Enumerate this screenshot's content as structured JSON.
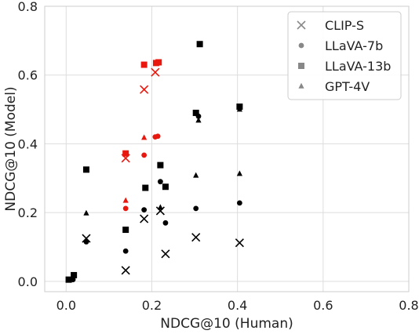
{
  "chart_data": {
    "type": "scatter",
    "xlabel": "NDCG@10 (Human)",
    "ylabel": "NDCG@10 (Model)",
    "xlim": [
      -0.05,
      0.8
    ],
    "ylim": [
      -0.03,
      0.8
    ],
    "xticks": [
      "0.0",
      "0.2",
      "0.4",
      "0.6",
      "0.8"
    ],
    "yticks": [
      "0.0",
      "0.2",
      "0.4",
      "0.6",
      "0.8"
    ],
    "xtick_values": [
      0.0,
      0.2,
      0.4,
      0.6,
      0.8
    ],
    "ytick_values": [
      0.0,
      0.2,
      0.4,
      0.6,
      0.8
    ],
    "grid": true,
    "legend_position": "top-right",
    "colors": {
      "default": "#000000",
      "highlight": "#e8180f",
      "legend": "#888888",
      "grid": "#dddddd"
    },
    "series": [
      {
        "name": "CLIP-S",
        "marker": "x",
        "points": [
          {
            "x": 0.047,
            "y": 0.125,
            "c": "default"
          },
          {
            "x": 0.139,
            "y": 0.032,
            "c": "default"
          },
          {
            "x": 0.139,
            "y": 0.358,
            "c": "highlight"
          },
          {
            "x": 0.182,
            "y": 0.558,
            "c": "highlight"
          },
          {
            "x": 0.182,
            "y": 0.182,
            "c": "default"
          },
          {
            "x": 0.208,
            "y": 0.608,
            "c": "highlight"
          },
          {
            "x": 0.22,
            "y": 0.205,
            "c": "default"
          },
          {
            "x": 0.232,
            "y": 0.08,
            "c": "default"
          },
          {
            "x": 0.303,
            "y": 0.128,
            "c": "default"
          },
          {
            "x": 0.405,
            "y": 0.112,
            "c": "default"
          }
        ]
      },
      {
        "name": "LLaVA-7b",
        "marker": "circle",
        "points": [
          {
            "x": 0.006,
            "y": 0.005,
            "c": "default"
          },
          {
            "x": 0.016,
            "y": 0.005,
            "c": "default"
          },
          {
            "x": 0.047,
            "y": 0.115,
            "c": "default"
          },
          {
            "x": 0.139,
            "y": 0.088,
            "c": "default"
          },
          {
            "x": 0.139,
            "y": 0.212,
            "c": "highlight"
          },
          {
            "x": 0.182,
            "y": 0.208,
            "c": "default"
          },
          {
            "x": 0.182,
            "y": 0.367,
            "c": "highlight"
          },
          {
            "x": 0.208,
            "y": 0.42,
            "c": "highlight"
          },
          {
            "x": 0.214,
            "y": 0.422,
            "c": "highlight"
          },
          {
            "x": 0.22,
            "y": 0.29,
            "c": "default"
          },
          {
            "x": 0.232,
            "y": 0.17,
            "c": "default"
          },
          {
            "x": 0.303,
            "y": 0.212,
            "c": "default"
          },
          {
            "x": 0.309,
            "y": 0.48,
            "c": "default"
          },
          {
            "x": 0.405,
            "y": 0.228,
            "c": "default"
          }
        ]
      },
      {
        "name": "LLaVA-13b",
        "marker": "square",
        "points": [
          {
            "x": 0.006,
            "y": 0.005,
            "c": "default"
          },
          {
            "x": 0.018,
            "y": 0.018,
            "c": "default"
          },
          {
            "x": 0.047,
            "y": 0.325,
            "c": "default"
          },
          {
            "x": 0.139,
            "y": 0.15,
            "c": "default"
          },
          {
            "x": 0.139,
            "y": 0.372,
            "c": "highlight"
          },
          {
            "x": 0.182,
            "y": 0.63,
            "c": "highlight"
          },
          {
            "x": 0.185,
            "y": 0.272,
            "c": "default"
          },
          {
            "x": 0.21,
            "y": 0.635,
            "c": "highlight"
          },
          {
            "x": 0.216,
            "y": 0.637,
            "c": "highlight"
          },
          {
            "x": 0.22,
            "y": 0.338,
            "c": "default"
          },
          {
            "x": 0.232,
            "y": 0.275,
            "c": "default"
          },
          {
            "x": 0.303,
            "y": 0.49,
            "c": "default"
          },
          {
            "x": 0.312,
            "y": 0.69,
            "c": "default"
          },
          {
            "x": 0.405,
            "y": 0.508,
            "c": "default"
          }
        ]
      },
      {
        "name": "GPT-4V",
        "marker": "triangle",
        "points": [
          {
            "x": 0.047,
            "y": 0.198,
            "c": "default"
          },
          {
            "x": 0.139,
            "y": 0.235,
            "c": "highlight"
          },
          {
            "x": 0.182,
            "y": 0.418,
            "c": "highlight"
          },
          {
            "x": 0.22,
            "y": 0.215,
            "c": "default"
          },
          {
            "x": 0.303,
            "y": 0.308,
            "c": "default"
          },
          {
            "x": 0.309,
            "y": 0.468,
            "c": "default"
          },
          {
            "x": 0.405,
            "y": 0.313,
            "c": "default"
          },
          {
            "x": 0.405,
            "y": 0.5,
            "c": "default"
          }
        ]
      }
    ]
  }
}
